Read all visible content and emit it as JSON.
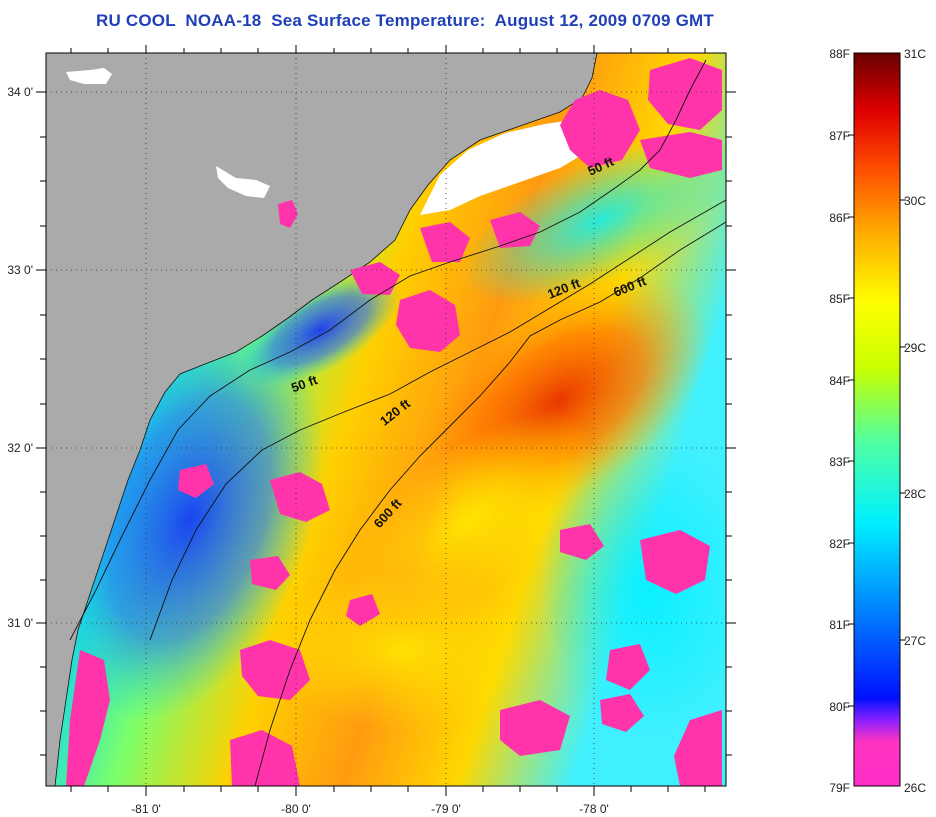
{
  "title": "RU COOL  NOAA-18  Sea Surface Temperature:  August 12, 2009 0709 GMT",
  "map": {
    "lat_labels": [
      "34 0'",
      "33 0'",
      "32 0'",
      "31 0'"
    ],
    "lon_labels": [
      "-81 0'",
      "-80 0'",
      "-79 0'",
      "-78 0'"
    ],
    "contour_labels": [
      "50 ft",
      "120 ft",
      "600 ft",
      "50 ft",
      "120 ft",
      "600 ft"
    ],
    "colors": {
      "land": "#aaaaaa",
      "cloud": "#ff33aa",
      "no_data": "#ffffff"
    }
  },
  "colorbar": {
    "fahrenheit_labels": [
      "88F",
      "87F",
      "86F",
      "85F",
      "84F",
      "83F",
      "82F",
      "81F",
      "80F",
      "79F"
    ],
    "celsius_labels": [
      "31C",
      "30C",
      "29C",
      "28C",
      "27C",
      "26C"
    ],
    "gradient": [
      "#ff2ec8",
      "#8a20ff",
      "#0010ff",
      "#0090ff",
      "#00f0ff",
      "#50ffa0",
      "#c8ff00",
      "#ffff00",
      "#ffb000",
      "#ff5000",
      "#e00000",
      "#6a0000"
    ]
  }
}
